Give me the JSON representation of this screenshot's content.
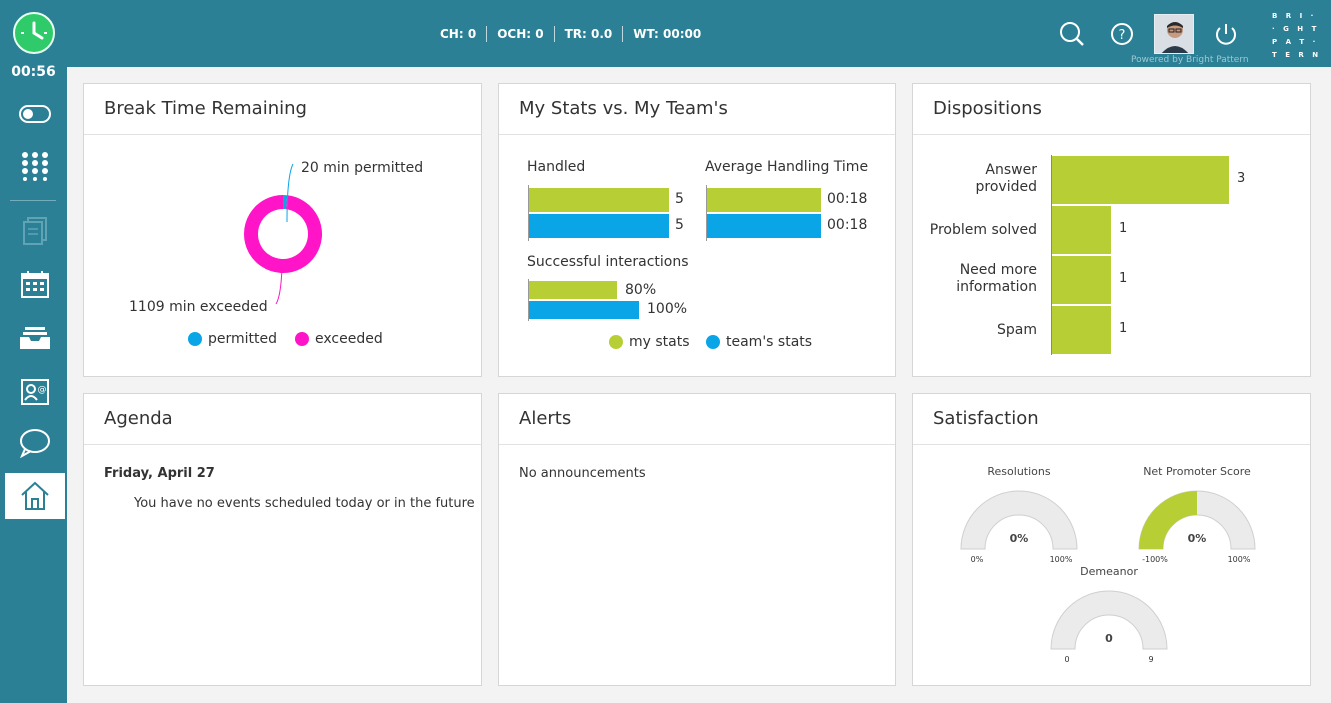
{
  "header": {
    "timer": "00:56",
    "metrics": [
      {
        "label": "CH: 0"
      },
      {
        "label": "OCH: 0"
      },
      {
        "label": "TR: 0.0"
      },
      {
        "label": "WT: 00:00"
      }
    ],
    "powered_by": "Powered by Bright Pattern",
    "brand_lines": [
      "B R I ·",
      "· G H T",
      "P A T ·",
      "T E R N"
    ]
  },
  "sidebar": {
    "items": [
      "toggle-icon",
      "dialpad-icon",
      "documents-icon",
      "calendar-icon",
      "inbox-icon",
      "contacts-icon",
      "chat-icon",
      "home-icon"
    ]
  },
  "break_time": {
    "title": "Break Time Remaining",
    "chart_data": {
      "type": "pie",
      "labels": [
        "permitted",
        "exceeded"
      ],
      "values": [
        20,
        1109
      ],
      "annotations": [
        "20 min permitted",
        "1109 min exceeded"
      ],
      "colors": [
        "#0aa5e6",
        "#ff14c8"
      ]
    }
  },
  "my_stats": {
    "title": "My Stats vs. My Team's",
    "chart_data": [
      {
        "type": "bar",
        "title": "Handled",
        "series": [
          {
            "name": "my stats",
            "values": [
              5
            ]
          },
          {
            "name": "team's stats",
            "values": [
              5
            ]
          }
        ],
        "data_labels": [
          "5",
          "5"
        ]
      },
      {
        "type": "bar",
        "title": "Average Handling Time",
        "series": [
          {
            "name": "my stats",
            "values": [
              18
            ]
          },
          {
            "name": "team's stats",
            "values": [
              18
            ]
          }
        ],
        "data_labels": [
          "00:18",
          "00:18"
        ]
      },
      {
        "type": "bar",
        "title": "Successful interactions",
        "series": [
          {
            "name": "my stats",
            "values": [
              80
            ]
          },
          {
            "name": "team's stats",
            "values": [
              100
            ]
          }
        ],
        "data_labels": [
          "80%",
          "100%"
        ]
      }
    ],
    "legend": [
      "my stats",
      "team's stats"
    ]
  },
  "dispositions": {
    "title": "Dispositions",
    "chart_data": {
      "type": "bar",
      "orientation": "horizontal",
      "categories": [
        "Answer provided",
        "Problem solved",
        "Need more information",
        "Spam"
      ],
      "category_lines": [
        [
          "Answer",
          "provided"
        ],
        [
          "Problem solved"
        ],
        [
          "Need more",
          "information"
        ],
        [
          "Spam"
        ]
      ],
      "values": [
        3,
        1,
        1,
        1
      ],
      "data_labels": [
        "3",
        "1",
        "1",
        "1"
      ]
    }
  },
  "agenda": {
    "title": "Agenda",
    "date": "Friday, April 27",
    "message": "You have no events scheduled today or in the future"
  },
  "alerts": {
    "title": "Alerts",
    "message": "No announcements"
  },
  "satisfaction": {
    "title": "Satisfaction",
    "gauges": [
      {
        "label": "Resolutions",
        "value_label": "0%",
        "min_label": "0%",
        "max_label": "100%",
        "value": 0,
        "min": 0,
        "max": 100
      },
      {
        "label": "Net Promoter Score",
        "value_label": "0%",
        "min_label": "-100%",
        "max_label": "100%",
        "value": 0,
        "min": -100,
        "max": 100
      },
      {
        "label": "Demeanor",
        "value_label": "0",
        "min_label": "0",
        "max_label": "9",
        "value": 0,
        "min": 0,
        "max": 9
      }
    ]
  },
  "colors": {
    "topbar": "#2c8096",
    "my_stats": "#b7cf34",
    "team_stats": "#0aa5e6",
    "exceeded": "#ff14c8",
    "gauge_track": "#ebebeb"
  }
}
